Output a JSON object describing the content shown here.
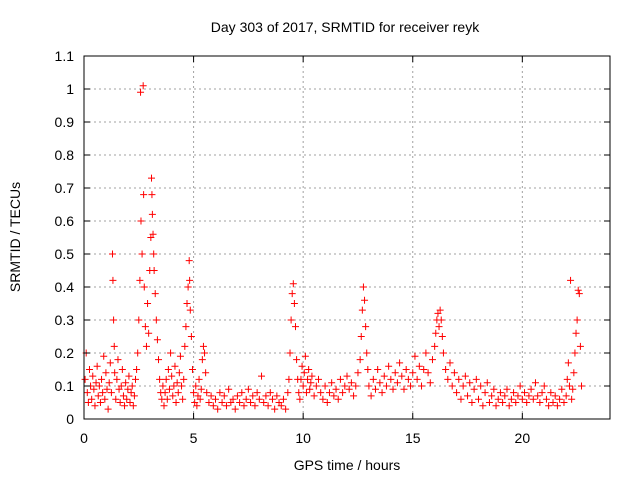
{
  "chart_data": {
    "type": "scatter",
    "title": "Day 303 of 2017, SRMTID for receiver reyk",
    "xlabel": "GPS time / hours",
    "ylabel": "SRMTID / TECUs",
    "xlim": [
      0,
      24
    ],
    "ylim": [
      0,
      1.1
    ],
    "xticks": [
      0,
      5,
      10,
      15,
      20
    ],
    "xtick_labels": [
      "0",
      "5",
      "10",
      "15",
      "20"
    ],
    "yticks": [
      0,
      0.1,
      0.2,
      0.3,
      0.4,
      0.5,
      0.6,
      0.7,
      0.8,
      0.9,
      1,
      1.1
    ],
    "ytick_labels": [
      "0",
      "0.1",
      "0.2",
      "0.3",
      "0.4",
      "0.5",
      "0.6",
      "0.7",
      "0.8",
      "0.9",
      "1",
      "1.1"
    ],
    "grid": true,
    "marker": "+",
    "marker_color": "#ff0000",
    "series": [
      {
        "name": "SRMTID",
        "points": [
          [
            0.05,
            0.12
          ],
          [
            0.1,
            0.2
          ],
          [
            0.15,
            0.08
          ],
          [
            0.2,
            0.05
          ],
          [
            0.25,
            0.15
          ],
          [
            0.3,
            0.1
          ],
          [
            0.35,
            0.06
          ],
          [
            0.4,
            0.13
          ],
          [
            0.45,
            0.09
          ],
          [
            0.5,
            0.04
          ],
          [
            0.55,
            0.11
          ],
          [
            0.6,
            0.16
          ],
          [
            0.65,
            0.07
          ],
          [
            0.7,
            0.1
          ],
          [
            0.75,
            0.05
          ],
          [
            0.8,
            0.12
          ],
          [
            0.85,
            0.08
          ],
          [
            0.9,
            0.19
          ],
          [
            0.95,
            0.06
          ],
          [
            1.0,
            0.14
          ],
          [
            1.05,
            0.09
          ],
          [
            1.1,
            0.03
          ],
          [
            1.15,
            0.11
          ],
          [
            1.2,
            0.17
          ],
          [
            1.25,
            0.08
          ],
          [
            1.3,
            0.5
          ],
          [
            1.32,
            0.42
          ],
          [
            1.35,
            0.3
          ],
          [
            1.38,
            0.22
          ],
          [
            1.4,
            0.14
          ],
          [
            1.45,
            0.06
          ],
          [
            1.5,
            0.12
          ],
          [
            1.55,
            0.18
          ],
          [
            1.6,
            0.09
          ],
          [
            1.65,
            0.05
          ],
          [
            1.7,
            0.1
          ],
          [
            1.75,
            0.15
          ],
          [
            1.8,
            0.07
          ],
          [
            1.85,
            0.04
          ],
          [
            1.9,
            0.11
          ],
          [
            1.95,
            0.06
          ],
          [
            2.0,
            0.09
          ],
          [
            2.05,
            0.13
          ],
          [
            2.1,
            0.05
          ],
          [
            2.15,
            0.08
          ],
          [
            2.2,
            0.1
          ],
          [
            2.25,
            0.04
          ],
          [
            2.3,
            0.07
          ],
          [
            2.35,
            0.12
          ],
          [
            2.4,
            0.15
          ],
          [
            2.45,
            0.2
          ],
          [
            2.5,
            0.3
          ],
          [
            2.55,
            0.42
          ],
          [
            2.58,
            0.99
          ],
          [
            2.6,
            0.6
          ],
          [
            2.65,
            0.5
          ],
          [
            2.7,
            1.01
          ],
          [
            2.72,
            0.68
          ],
          [
            2.75,
            0.4
          ],
          [
            2.8,
            0.28
          ],
          [
            2.85,
            0.22
          ],
          [
            2.9,
            0.35
          ],
          [
            2.95,
            0.26
          ],
          [
            3.0,
            0.45
          ],
          [
            3.05,
            0.55
          ],
          [
            3.08,
            0.73
          ],
          [
            3.1,
            0.68
          ],
          [
            3.12,
            0.62
          ],
          [
            3.15,
            0.56
          ],
          [
            3.18,
            0.5
          ],
          [
            3.2,
            0.45
          ],
          [
            3.25,
            0.38
          ],
          [
            3.3,
            0.3
          ],
          [
            3.35,
            0.24
          ],
          [
            3.4,
            0.18
          ],
          [
            3.45,
            0.12
          ],
          [
            3.5,
            0.08
          ],
          [
            3.55,
            0.06
          ],
          [
            3.6,
            0.1
          ],
          [
            3.65,
            0.04
          ],
          [
            3.7,
            0.08
          ],
          [
            3.75,
            0.12
          ],
          [
            3.8,
            0.06
          ],
          [
            3.85,
            0.15
          ],
          [
            3.9,
            0.09
          ],
          [
            3.95,
            0.2
          ],
          [
            4.0,
            0.13
          ],
          [
            4.05,
            0.07
          ],
          [
            4.1,
            0.1
          ],
          [
            4.15,
            0.16
          ],
          [
            4.2,
            0.05
          ],
          [
            4.25,
            0.11
          ],
          [
            4.3,
            0.08
          ],
          [
            4.35,
            0.14
          ],
          [
            4.4,
            0.19
          ],
          [
            4.45,
            0.1
          ],
          [
            4.5,
            0.06
          ],
          [
            4.55,
            0.12
          ],
          [
            4.6,
            0.22
          ],
          [
            4.65,
            0.28
          ],
          [
            4.7,
            0.35
          ],
          [
            4.75,
            0.4
          ],
          [
            4.8,
            0.48
          ],
          [
            4.82,
            0.42
          ],
          [
            4.85,
            0.33
          ],
          [
            4.9,
            0.25
          ],
          [
            4.95,
            0.15
          ],
          [
            5.0,
            0.08
          ],
          [
            5.05,
            0.05
          ],
          [
            5.1,
            0.1
          ],
          [
            5.15,
            0.04
          ],
          [
            5.2,
            0.07
          ],
          [
            5.25,
            0.12
          ],
          [
            5.3,
            0.06
          ],
          [
            5.35,
            0.09
          ],
          [
            5.4,
            0.18
          ],
          [
            5.45,
            0.22
          ],
          [
            5.5,
            0.2
          ],
          [
            5.55,
            0.14
          ],
          [
            5.6,
            0.08
          ],
          [
            5.7,
            0.05
          ],
          [
            5.8,
            0.07
          ],
          [
            5.9,
            0.04
          ],
          [
            6.0,
            0.06
          ],
          [
            6.1,
            0.03
          ],
          [
            6.2,
            0.08
          ],
          [
            6.3,
            0.05
          ],
          [
            6.4,
            0.07
          ],
          [
            6.5,
            0.04
          ],
          [
            6.6,
            0.09
          ],
          [
            6.7,
            0.05
          ],
          [
            6.8,
            0.06
          ],
          [
            6.9,
            0.03
          ],
          [
            7.0,
            0.07
          ],
          [
            7.1,
            0.05
          ],
          [
            7.2,
            0.08
          ],
          [
            7.3,
            0.04
          ],
          [
            7.4,
            0.06
          ],
          [
            7.5,
            0.09
          ],
          [
            7.6,
            0.05
          ],
          [
            7.7,
            0.07
          ],
          [
            7.8,
            0.04
          ],
          [
            7.9,
            0.08
          ],
          [
            8.0,
            0.06
          ],
          [
            8.1,
            0.13
          ],
          [
            8.2,
            0.05
          ],
          [
            8.3,
            0.07
          ],
          [
            8.4,
            0.04
          ],
          [
            8.5,
            0.08
          ],
          [
            8.6,
            0.06
          ],
          [
            8.7,
            0.03
          ],
          [
            8.8,
            0.07
          ],
          [
            8.9,
            0.05
          ],
          [
            9.0,
            0.04
          ],
          [
            9.1,
            0.06
          ],
          [
            9.2,
            0.03
          ],
          [
            9.3,
            0.08
          ],
          [
            9.35,
            0.12
          ],
          [
            9.4,
            0.2
          ],
          [
            9.45,
            0.3
          ],
          [
            9.5,
            0.38
          ],
          [
            9.55,
            0.41
          ],
          [
            9.6,
            0.35
          ],
          [
            9.65,
            0.28
          ],
          [
            9.7,
            0.18
          ],
          [
            9.75,
            0.12
          ],
          [
            9.8,
            0.08
          ],
          [
            9.85,
            0.06
          ],
          [
            9.9,
            0.12
          ],
          [
            9.95,
            0.16
          ],
          [
            10.0,
            0.1
          ],
          [
            10.05,
            0.14
          ],
          [
            10.1,
            0.19
          ],
          [
            10.15,
            0.08
          ],
          [
            10.2,
            0.12
          ],
          [
            10.25,
            0.15
          ],
          [
            10.3,
            0.09
          ],
          [
            10.35,
            0.11
          ],
          [
            10.4,
            0.13
          ],
          [
            10.5,
            0.07
          ],
          [
            10.6,
            0.1
          ],
          [
            10.7,
            0.12
          ],
          [
            10.8,
            0.08
          ],
          [
            10.9,
            0.06
          ],
          [
            11.0,
            0.1
          ],
          [
            11.1,
            0.05
          ],
          [
            11.2,
            0.08
          ],
          [
            11.3,
            0.11
          ],
          [
            11.4,
            0.07
          ],
          [
            11.5,
            0.09
          ],
          [
            11.6,
            0.06
          ],
          [
            11.7,
            0.12
          ],
          [
            11.8,
            0.08
          ],
          [
            11.9,
            0.1
          ],
          [
            12.0,
            0.13
          ],
          [
            12.1,
            0.09
          ],
          [
            12.2,
            0.11
          ],
          [
            12.3,
            0.07
          ],
          [
            12.4,
            0.1
          ],
          [
            12.5,
            0.14
          ],
          [
            12.6,
            0.18
          ],
          [
            12.65,
            0.25
          ],
          [
            12.7,
            0.33
          ],
          [
            12.75,
            0.4
          ],
          [
            12.8,
            0.36
          ],
          [
            12.85,
            0.28
          ],
          [
            12.9,
            0.2
          ],
          [
            12.95,
            0.15
          ],
          [
            13.0,
            0.1
          ],
          [
            13.1,
            0.07
          ],
          [
            13.2,
            0.12
          ],
          [
            13.3,
            0.09
          ],
          [
            13.4,
            0.15
          ],
          [
            13.5,
            0.11
          ],
          [
            13.6,
            0.08
          ],
          [
            13.7,
            0.13
          ],
          [
            13.8,
            0.1
          ],
          [
            13.9,
            0.16
          ],
          [
            14.0,
            0.12
          ],
          [
            14.1,
            0.09
          ],
          [
            14.2,
            0.14
          ],
          [
            14.3,
            0.11
          ],
          [
            14.4,
            0.17
          ],
          [
            14.5,
            0.13
          ],
          [
            14.6,
            0.09
          ],
          [
            14.7,
            0.15
          ],
          [
            14.8,
            0.12
          ],
          [
            14.9,
            0.1
          ],
          [
            15.0,
            0.14
          ],
          [
            15.1,
            0.19
          ],
          [
            15.2,
            0.12
          ],
          [
            15.3,
            0.16
          ],
          [
            15.4,
            0.1
          ],
          [
            15.5,
            0.15
          ],
          [
            15.6,
            0.2
          ],
          [
            15.7,
            0.14
          ],
          [
            15.8,
            0.11
          ],
          [
            15.9,
            0.18
          ],
          [
            16.0,
            0.22
          ],
          [
            16.05,
            0.26
          ],
          [
            16.1,
            0.3
          ],
          [
            16.15,
            0.32
          ],
          [
            16.2,
            0.28
          ],
          [
            16.25,
            0.33
          ],
          [
            16.3,
            0.3
          ],
          [
            16.35,
            0.25
          ],
          [
            16.4,
            0.2
          ],
          [
            16.5,
            0.15
          ],
          [
            16.6,
            0.12
          ],
          [
            16.7,
            0.17
          ],
          [
            16.8,
            0.1
          ],
          [
            16.9,
            0.14
          ],
          [
            17.0,
            0.08
          ],
          [
            17.1,
            0.12
          ],
          [
            17.2,
            0.06
          ],
          [
            17.3,
            0.1
          ],
          [
            17.4,
            0.13
          ],
          [
            17.5,
            0.07
          ],
          [
            17.6,
            0.11
          ],
          [
            17.7,
            0.05
          ],
          [
            17.8,
            0.09
          ],
          [
            17.9,
            0.12
          ],
          [
            18.0,
            0.06
          ],
          [
            18.1,
            0.1
          ],
          [
            18.2,
            0.04
          ],
          [
            18.3,
            0.08
          ],
          [
            18.4,
            0.11
          ],
          [
            18.5,
            0.05
          ],
          [
            18.6,
            0.07
          ],
          [
            18.7,
            0.09
          ],
          [
            18.8,
            0.04
          ],
          [
            18.9,
            0.06
          ],
          [
            19.0,
            0.08
          ],
          [
            19.1,
            0.05
          ],
          [
            19.2,
            0.07
          ],
          [
            19.3,
            0.09
          ],
          [
            19.4,
            0.04
          ],
          [
            19.5,
            0.06
          ],
          [
            19.6,
            0.08
          ],
          [
            19.7,
            0.05
          ],
          [
            19.8,
            0.07
          ],
          [
            19.9,
            0.1
          ],
          [
            20.0,
            0.06
          ],
          [
            20.1,
            0.08
          ],
          [
            20.2,
            0.05
          ],
          [
            20.3,
            0.07
          ],
          [
            20.4,
            0.09
          ],
          [
            20.5,
            0.06
          ],
          [
            20.6,
            0.11
          ],
          [
            20.7,
            0.07
          ],
          [
            20.8,
            0.05
          ],
          [
            20.9,
            0.08
          ],
          [
            21.0,
            0.1
          ],
          [
            21.1,
            0.06
          ],
          [
            21.2,
            0.04
          ],
          [
            21.3,
            0.08
          ],
          [
            21.4,
            0.05
          ],
          [
            21.5,
            0.07
          ],
          [
            21.6,
            0.04
          ],
          [
            21.7,
            0.06
          ],
          [
            21.8,
            0.09
          ],
          [
            21.9,
            0.05
          ],
          [
            22.0,
            0.07
          ],
          [
            22.05,
            0.12
          ],
          [
            22.1,
            0.17
          ],
          [
            22.15,
            0.1
          ],
          [
            22.2,
            0.42
          ],
          [
            22.25,
            0.06
          ],
          [
            22.3,
            0.09
          ],
          [
            22.35,
            0.14
          ],
          [
            22.4,
            0.2
          ],
          [
            22.45,
            0.26
          ],
          [
            22.5,
            0.3
          ],
          [
            22.55,
            0.39
          ],
          [
            22.6,
            0.38
          ],
          [
            22.65,
            0.22
          ],
          [
            22.7,
            0.1
          ]
        ]
      }
    ]
  }
}
